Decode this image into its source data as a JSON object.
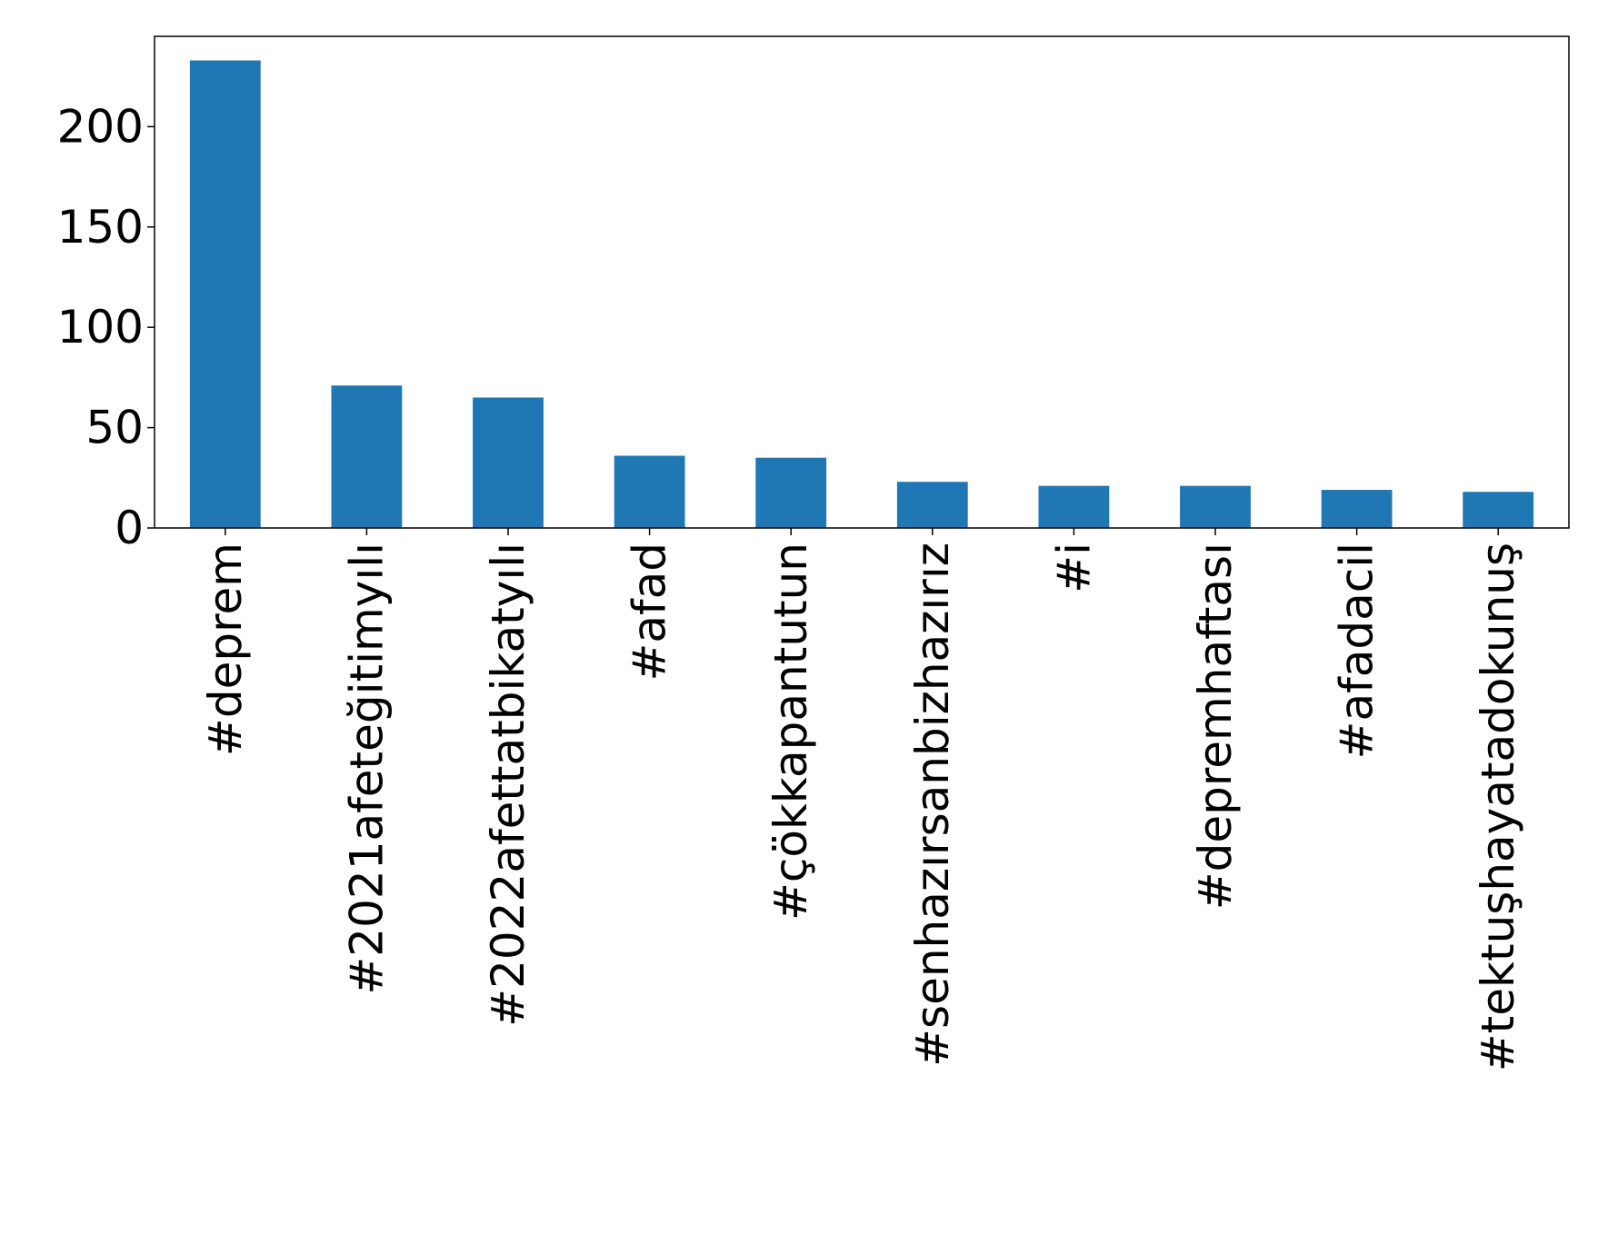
{
  "chart_data": {
    "type": "bar",
    "title": "",
    "xlabel": "",
    "ylabel": "",
    "categories": [
      "#deprem",
      "#2021afeteğitimyılı",
      "#2022afettatbikatyılı",
      "#afad",
      "#çökkapantutun",
      "#senhazırsanbizhazırız",
      "#i",
      "#depremhaftası",
      "#afadacil",
      "#tektuşhayatadokunuş"
    ],
    "values": [
      233,
      71,
      65,
      36,
      35,
      23,
      21,
      21,
      19,
      18
    ],
    "ylim": [
      0,
      245
    ],
    "yticks": [
      0,
      50,
      100,
      150,
      200
    ],
    "grid": false,
    "legend": "none",
    "colors": {
      "bar": "#1f77b4",
      "axes": "#000000",
      "background": "#ffffff"
    }
  }
}
